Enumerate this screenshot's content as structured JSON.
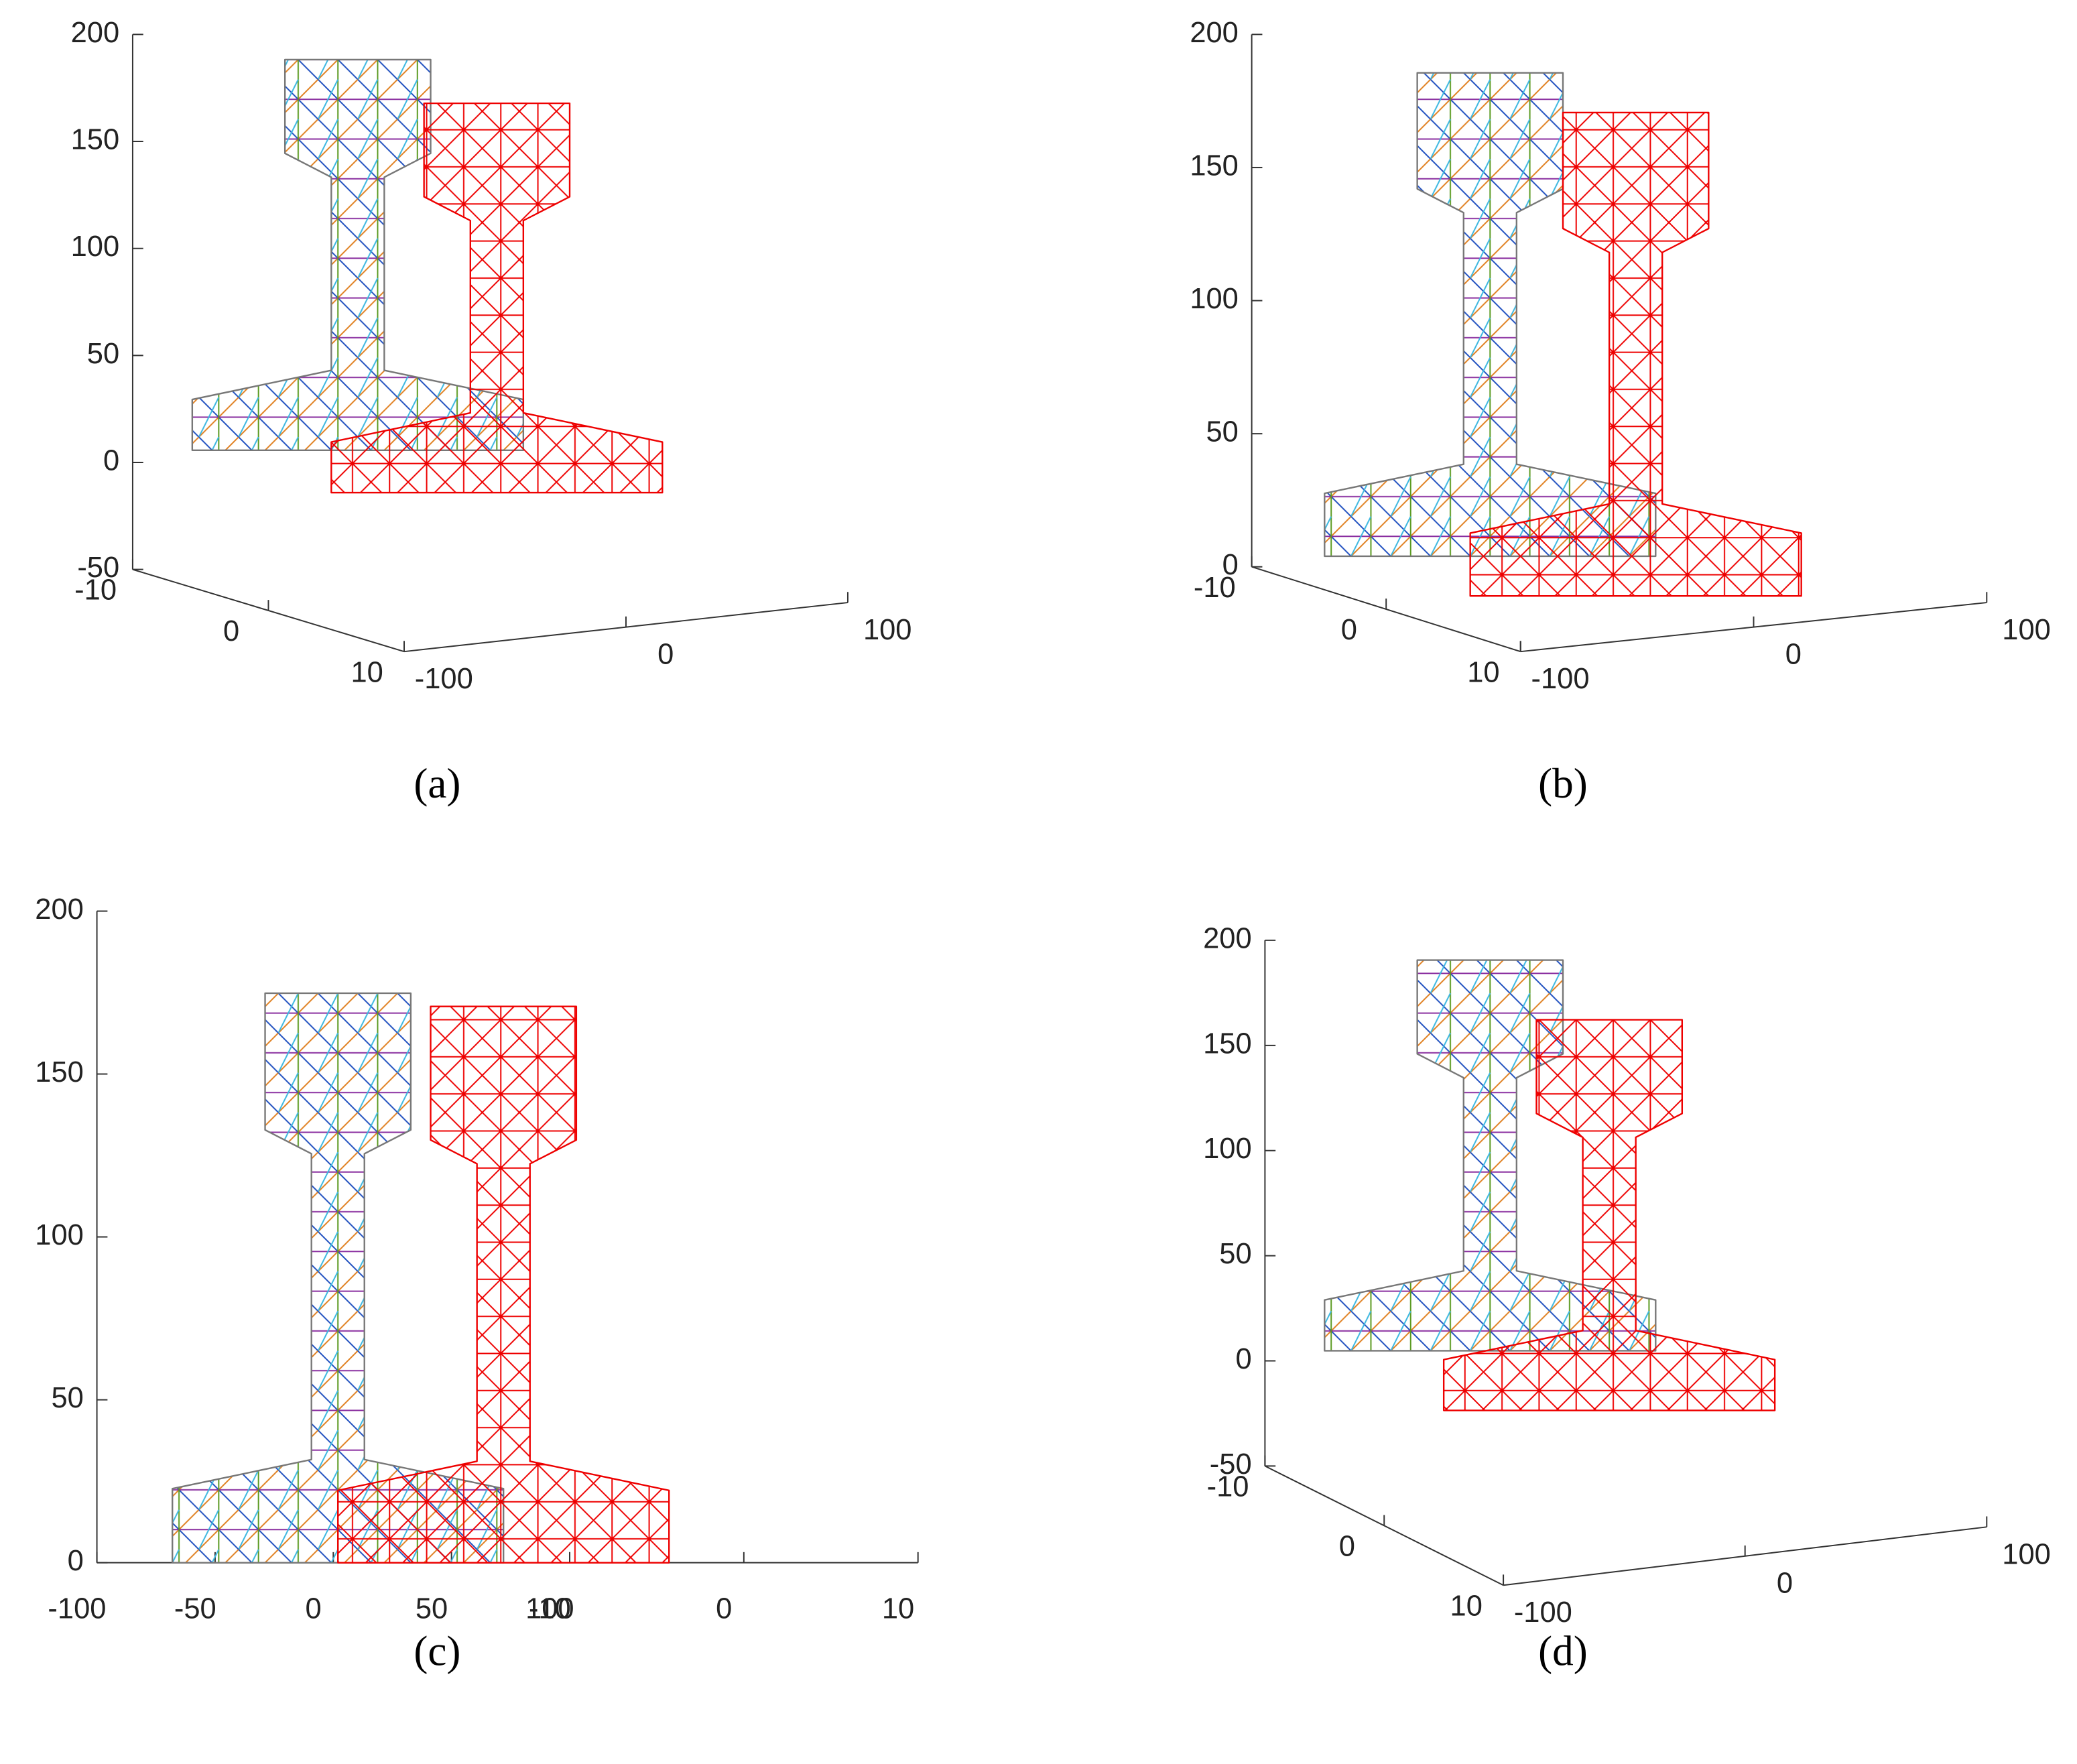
{
  "chart_data": [
    {
      "type": "mesh3d",
      "caption": "(a)",
      "xlim": [
        -100,
        100
      ],
      "ylim": [
        -10,
        10
      ],
      "zlim": [
        -50,
        200
      ],
      "xticks": [
        -100,
        0,
        100
      ],
      "yticks": [
        -10,
        0,
        10
      ],
      "zticks": [
        -50,
        0,
        50,
        100,
        150,
        200
      ]
    },
    {
      "type": "mesh3d",
      "caption": "(b)",
      "xlim": [
        -100,
        100
      ],
      "ylim": [
        -10,
        10
      ],
      "zlim": [
        0,
        200
      ],
      "xticks": [
        -100,
        0,
        100
      ],
      "yticks": [
        -10,
        0,
        10
      ],
      "zticks": [
        0,
        50,
        100,
        150,
        200
      ]
    },
    {
      "type": "mesh3d",
      "caption": "(c)",
      "xlim": [
        -100,
        100
      ],
      "ylim": [
        -10,
        10
      ],
      "zlim": [
        0,
        200
      ],
      "xticks": [
        -100,
        -50,
        0,
        50,
        100
      ],
      "yticks": [
        -10,
        0,
        10
      ],
      "zticks": [
        0,
        50,
        100,
        150,
        200
      ]
    },
    {
      "type": "mesh3d",
      "caption": "(d)",
      "xlim": [
        -100,
        100
      ],
      "ylim": [
        -10,
        10
      ],
      "zlim": [
        -50,
        200
      ],
      "xticks": [
        -100,
        0,
        100
      ],
      "yticks": [
        -10,
        0,
        10
      ],
      "zticks": [
        -50,
        0,
        50,
        100,
        150,
        200
      ]
    }
  ]
}
